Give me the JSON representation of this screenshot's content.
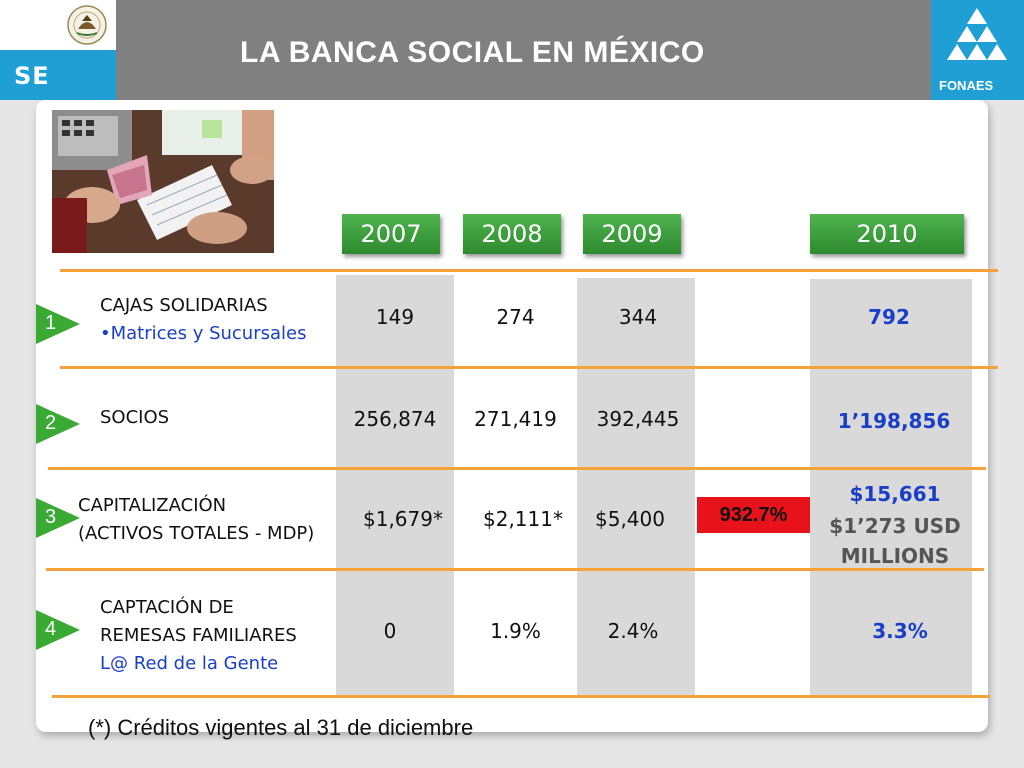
{
  "header": {
    "title": "LA BANCA SOCIAL EN MÉXICO",
    "left_logo_text": "SE",
    "right_logo_text": "FONAES",
    "colors": {
      "brand_blue": "#1f9fd3",
      "banner_gray": "#808080",
      "accent_orange": "#f5a23a",
      "year_green": "#3a9e3a",
      "highlight_red": "#e8121b",
      "value_blue": "#1a3fc7"
    }
  },
  "photo": {
    "icon": "cash-counting-photo"
  },
  "years": [
    "2007",
    "2008",
    "2009",
    "2010"
  ],
  "rows": [
    {
      "number": "1",
      "label_line1": "CAJAS SOLIDARIAS",
      "label_line2": "•Matrices y Sucursales",
      "values": [
        "149",
        "274",
        "344"
      ],
      "value_2010": "792"
    },
    {
      "number": "2",
      "label_line1": "SOCIOS",
      "values": [
        "256,874",
        "271,419",
        "392,445"
      ],
      "value_2010": "1’198,856"
    },
    {
      "number": "3",
      "label_line1": "CAPITALIZACIÓN",
      "label_line2": "(ACTIVOS TOTALES - MDP)",
      "values": [
        "$1,679*",
        "$2,111*",
        "$5,400"
      ],
      "growth": "932.7%",
      "value_2010": "$15,661",
      "value_2010_line2": "$1’273 USD",
      "value_2010_line3": "MILLIONS"
    },
    {
      "number": "4",
      "label_line1": "CAPTACIÓN DE",
      "label_line2": "REMESAS FAMILIARES",
      "label_line3": "L@ Red de la Gente",
      "values": [
        "0",
        "1.9%",
        "2.4%"
      ],
      "value_2010": "3.3%"
    }
  ],
  "footnote": "(*) Créditos vigentes al 31 de diciembre"
}
